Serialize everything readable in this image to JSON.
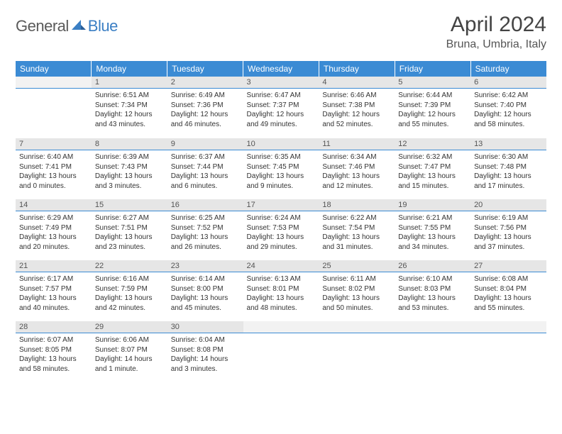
{
  "logo": {
    "part1": "General",
    "part2": "Blue"
  },
  "title": "April 2024",
  "location": "Bruna, Umbria, Italy",
  "colors": {
    "header_bg": "#3b8bd4",
    "header_text": "#ffffff",
    "daynum_bg": "#e6e6e6",
    "day_border": "#3b8bd4",
    "logo_gray": "#5a5a5a",
    "logo_blue": "#3b7fc4",
    "body_text": "#333333"
  },
  "weekdays": [
    "Sunday",
    "Monday",
    "Tuesday",
    "Wednesday",
    "Thursday",
    "Friday",
    "Saturday"
  ],
  "start_offset": 1,
  "days": [
    {
      "n": 1,
      "sunrise": "6:51 AM",
      "sunset": "7:34 PM",
      "daylight": "12 hours and 43 minutes."
    },
    {
      "n": 2,
      "sunrise": "6:49 AM",
      "sunset": "7:36 PM",
      "daylight": "12 hours and 46 minutes."
    },
    {
      "n": 3,
      "sunrise": "6:47 AM",
      "sunset": "7:37 PM",
      "daylight": "12 hours and 49 minutes."
    },
    {
      "n": 4,
      "sunrise": "6:46 AM",
      "sunset": "7:38 PM",
      "daylight": "12 hours and 52 minutes."
    },
    {
      "n": 5,
      "sunrise": "6:44 AM",
      "sunset": "7:39 PM",
      "daylight": "12 hours and 55 minutes."
    },
    {
      "n": 6,
      "sunrise": "6:42 AM",
      "sunset": "7:40 PM",
      "daylight": "12 hours and 58 minutes."
    },
    {
      "n": 7,
      "sunrise": "6:40 AM",
      "sunset": "7:41 PM",
      "daylight": "13 hours and 0 minutes."
    },
    {
      "n": 8,
      "sunrise": "6:39 AM",
      "sunset": "7:43 PM",
      "daylight": "13 hours and 3 minutes."
    },
    {
      "n": 9,
      "sunrise": "6:37 AM",
      "sunset": "7:44 PM",
      "daylight": "13 hours and 6 minutes."
    },
    {
      "n": 10,
      "sunrise": "6:35 AM",
      "sunset": "7:45 PM",
      "daylight": "13 hours and 9 minutes."
    },
    {
      "n": 11,
      "sunrise": "6:34 AM",
      "sunset": "7:46 PM",
      "daylight": "13 hours and 12 minutes."
    },
    {
      "n": 12,
      "sunrise": "6:32 AM",
      "sunset": "7:47 PM",
      "daylight": "13 hours and 15 minutes."
    },
    {
      "n": 13,
      "sunrise": "6:30 AM",
      "sunset": "7:48 PM",
      "daylight": "13 hours and 17 minutes."
    },
    {
      "n": 14,
      "sunrise": "6:29 AM",
      "sunset": "7:49 PM",
      "daylight": "13 hours and 20 minutes."
    },
    {
      "n": 15,
      "sunrise": "6:27 AM",
      "sunset": "7:51 PM",
      "daylight": "13 hours and 23 minutes."
    },
    {
      "n": 16,
      "sunrise": "6:25 AM",
      "sunset": "7:52 PM",
      "daylight": "13 hours and 26 minutes."
    },
    {
      "n": 17,
      "sunrise": "6:24 AM",
      "sunset": "7:53 PM",
      "daylight": "13 hours and 29 minutes."
    },
    {
      "n": 18,
      "sunrise": "6:22 AM",
      "sunset": "7:54 PM",
      "daylight": "13 hours and 31 minutes."
    },
    {
      "n": 19,
      "sunrise": "6:21 AM",
      "sunset": "7:55 PM",
      "daylight": "13 hours and 34 minutes."
    },
    {
      "n": 20,
      "sunrise": "6:19 AM",
      "sunset": "7:56 PM",
      "daylight": "13 hours and 37 minutes."
    },
    {
      "n": 21,
      "sunrise": "6:17 AM",
      "sunset": "7:57 PM",
      "daylight": "13 hours and 40 minutes."
    },
    {
      "n": 22,
      "sunrise": "6:16 AM",
      "sunset": "7:59 PM",
      "daylight": "13 hours and 42 minutes."
    },
    {
      "n": 23,
      "sunrise": "6:14 AM",
      "sunset": "8:00 PM",
      "daylight": "13 hours and 45 minutes."
    },
    {
      "n": 24,
      "sunrise": "6:13 AM",
      "sunset": "8:01 PM",
      "daylight": "13 hours and 48 minutes."
    },
    {
      "n": 25,
      "sunrise": "6:11 AM",
      "sunset": "8:02 PM",
      "daylight": "13 hours and 50 minutes."
    },
    {
      "n": 26,
      "sunrise": "6:10 AM",
      "sunset": "8:03 PM",
      "daylight": "13 hours and 53 minutes."
    },
    {
      "n": 27,
      "sunrise": "6:08 AM",
      "sunset": "8:04 PM",
      "daylight": "13 hours and 55 minutes."
    },
    {
      "n": 28,
      "sunrise": "6:07 AM",
      "sunset": "8:05 PM",
      "daylight": "13 hours and 58 minutes."
    },
    {
      "n": 29,
      "sunrise": "6:06 AM",
      "sunset": "8:07 PM",
      "daylight": "14 hours and 1 minute."
    },
    {
      "n": 30,
      "sunrise": "6:04 AM",
      "sunset": "8:08 PM",
      "daylight": "14 hours and 3 minutes."
    }
  ],
  "labels": {
    "sunrise": "Sunrise:",
    "sunset": "Sunset:",
    "daylight": "Daylight:"
  }
}
